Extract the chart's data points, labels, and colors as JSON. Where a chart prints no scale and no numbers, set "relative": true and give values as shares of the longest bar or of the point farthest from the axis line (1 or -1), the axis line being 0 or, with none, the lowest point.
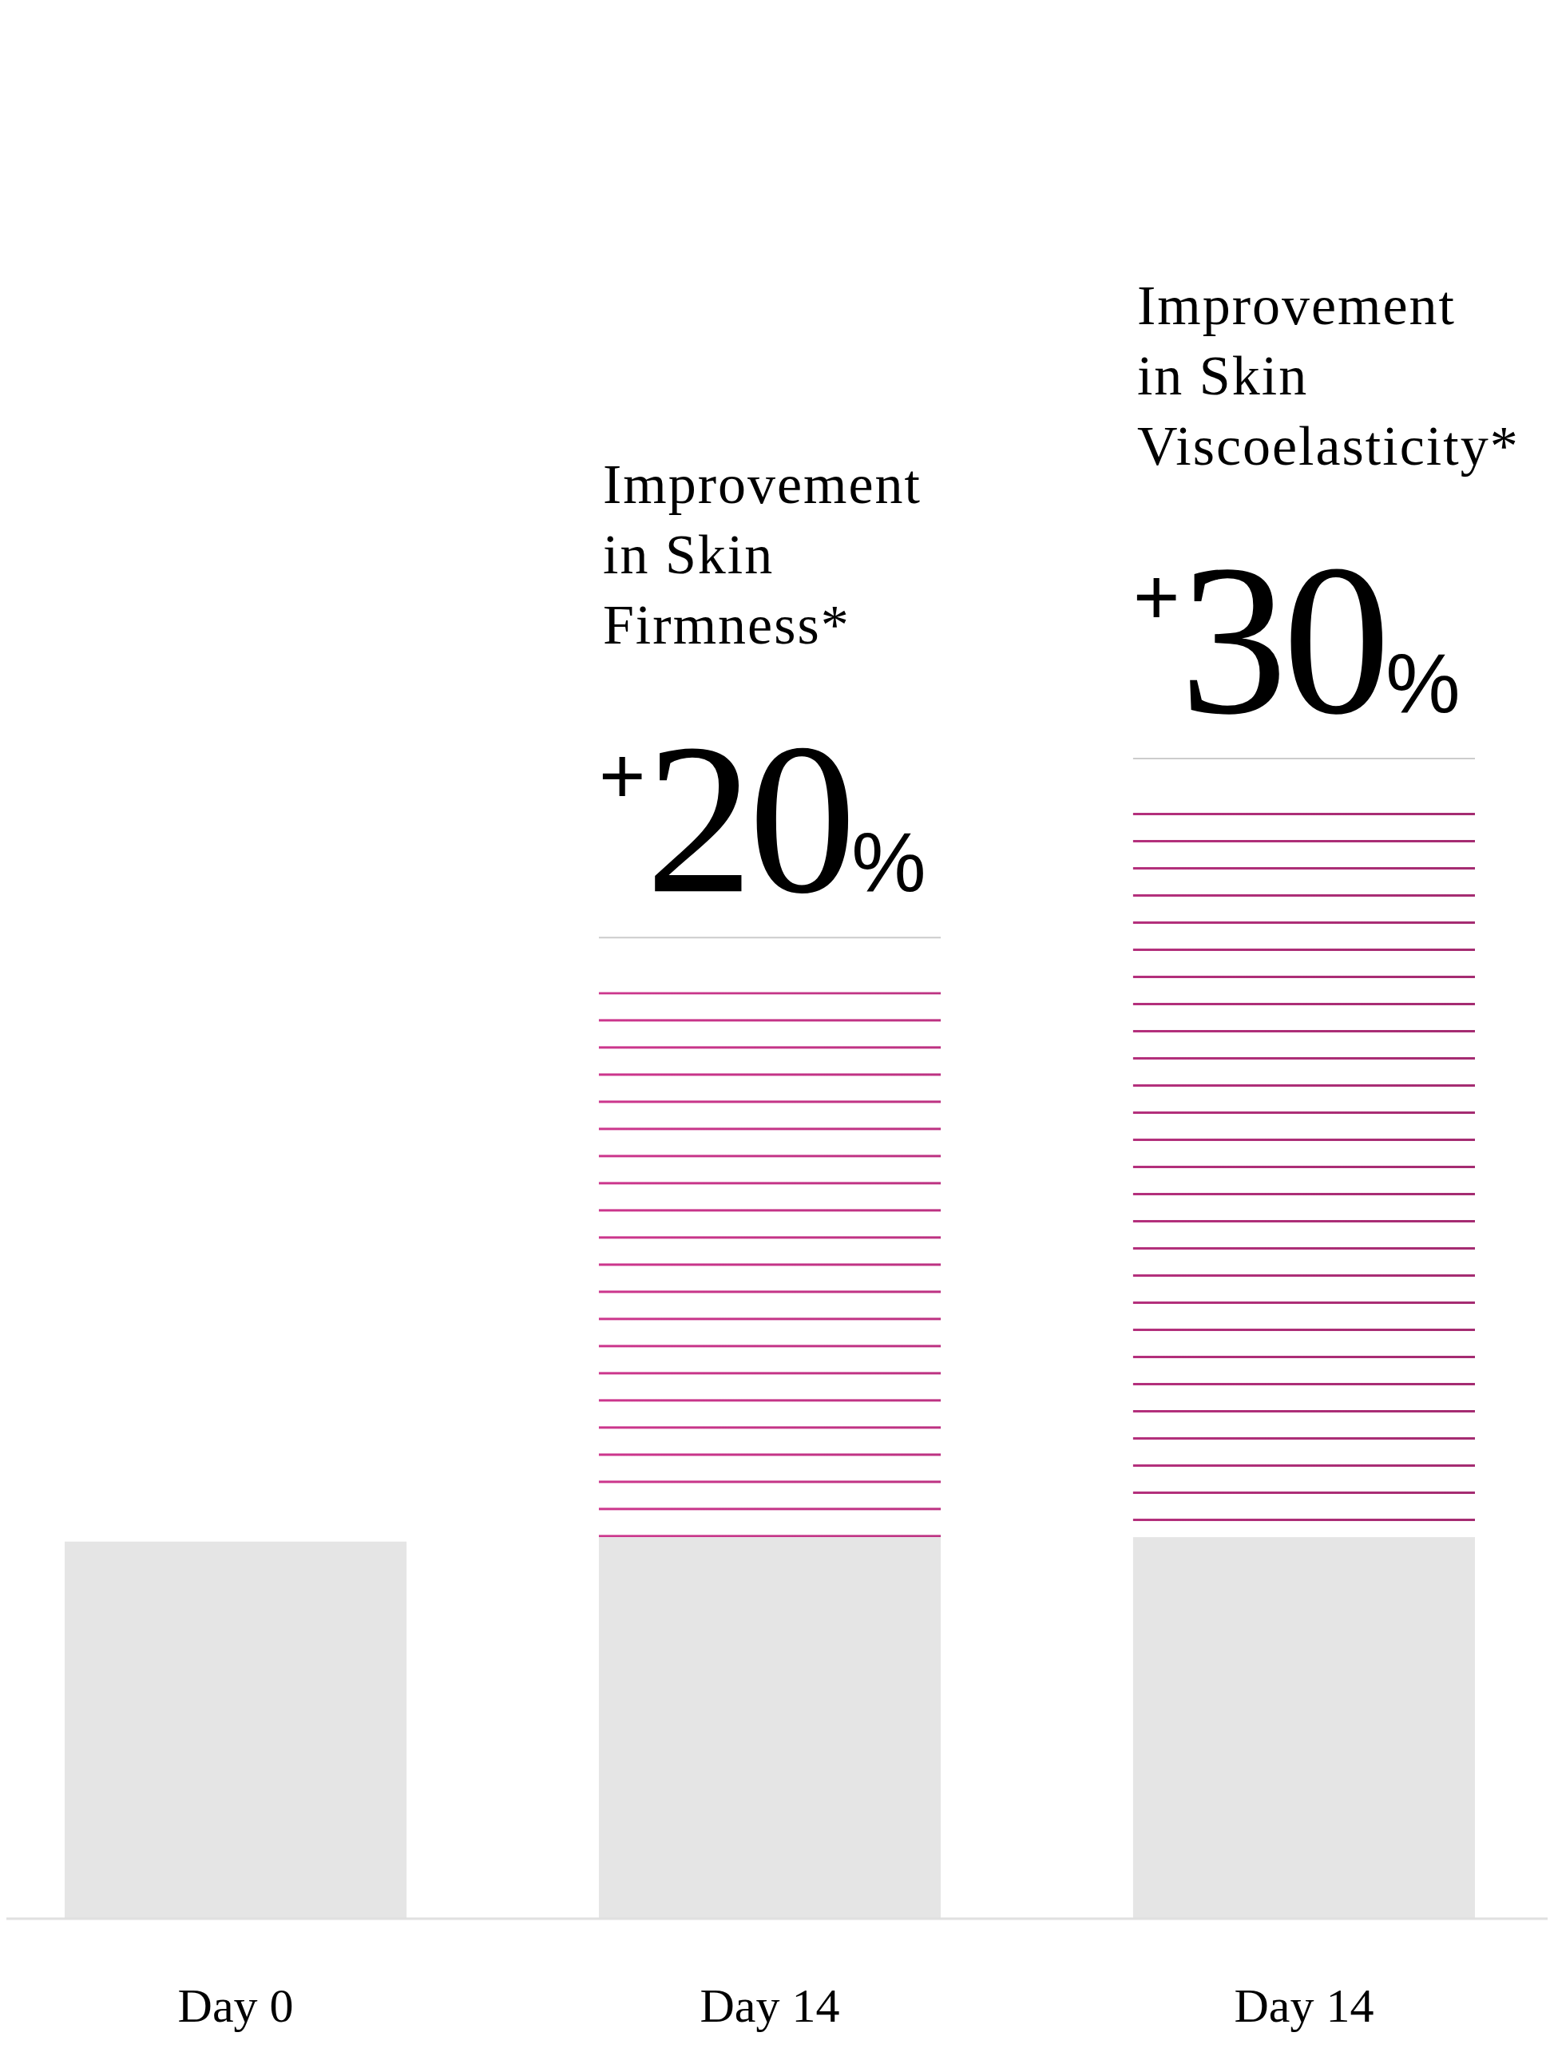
{
  "chart_data": {
    "type": "bar",
    "stacked": true,
    "relative": true,
    "categories": [
      "Day 0",
      "Day 14",
      "Day 14"
    ],
    "series": [
      {
        "color": "#e5e5e5",
        "values": [
          0.341,
          0.345,
          0.345
        ]
      },
      {
        "color": "#c8358a",
        "values": [
          0,
          0.493,
          0.655
        ]
      }
    ],
    "annotations": [
      "Improvement in Skin Firmness*",
      "+20%",
      "Improvement in Skin Viscoelasticity*",
      "+30%"
    ]
  }
}
